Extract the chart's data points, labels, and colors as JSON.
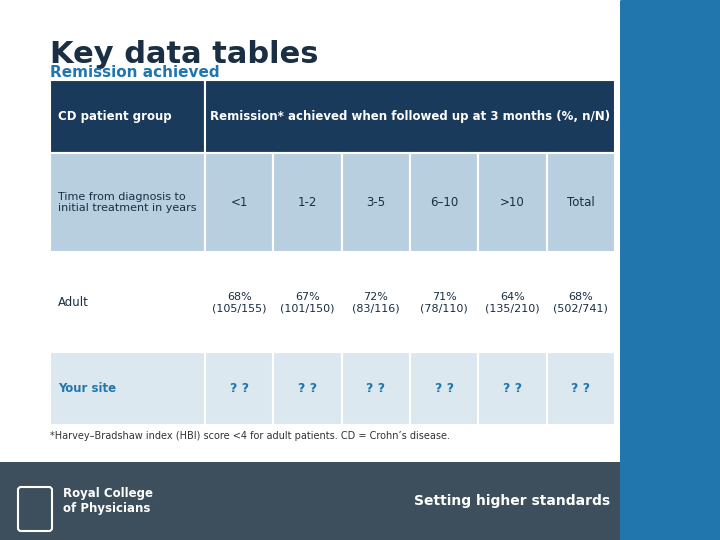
{
  "title": "Key data tables",
  "subtitle": "Remission achieved",
  "title_color": "#1a2e44",
  "subtitle_color": "#2176ae",
  "bg_color": "#ffffff",
  "footer_bg": "#3d4f5c",
  "footer_text_left1": "Royal College",
  "footer_text_left2": "of Physicians",
  "footer_text_right": "Setting higher standards",
  "footnote": "*Harvey–Bradshaw index (HBI) score <4 for adult patients. CD = Crohn’s disease.",
  "blue_panel_color": "#2176ae",
  "table": {
    "header_bg": "#1a3a5c",
    "header_text_color": "#ffffff",
    "subheader_bg": "#b8cfe0",
    "subheader_text_color": "#1a2e44",
    "row1_bg": "#ffffff",
    "row1_text_color": "#1a2e44",
    "row2_bg": "#dce8f0",
    "row2_text_color": "#2176ae",
    "col0_header": "CD patient group",
    "col1_header": "Remission* achieved when followed up at 3 months (%, n/N)",
    "subrow_label": "Time from diagnosis to\ninitial treatment in years",
    "sub_cols": [
      "<1",
      "1-2",
      "3-5",
      "6–10",
      ">10",
      "Total"
    ],
    "adult_label": "Adult",
    "adult_data": [
      "68%\n(105/155)",
      "67%\n(101/150)",
      "72%\n(83/116)",
      "71%\n(78/110)",
      "64%\n(135/210)",
      "68%\n(502/741)"
    ],
    "yoursite_label": "Your site",
    "yoursite_data": [
      "? ?",
      "? ?",
      "? ?",
      "? ?",
      "? ?",
      "? ?"
    ]
  }
}
